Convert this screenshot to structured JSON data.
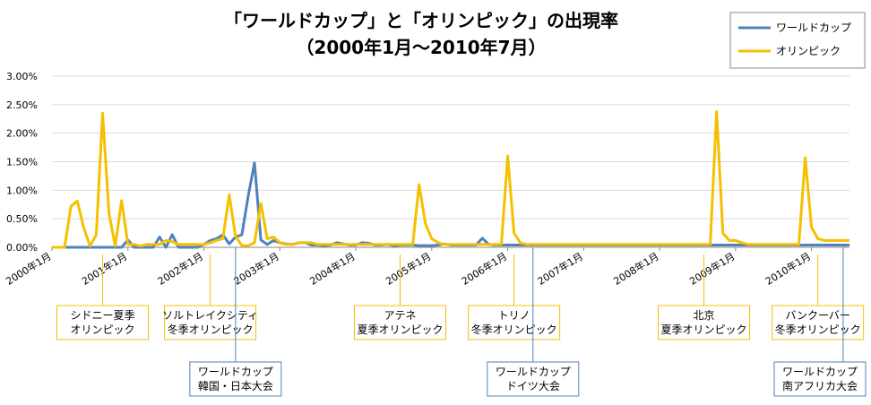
{
  "colors": {
    "worldcup": "#4F81BD",
    "olympic": "#F5C000",
    "grid": "#D9D9D9",
    "axis": "#888888"
  },
  "chart_data": {
    "type": "line",
    "title": [
      "「ワールドカップ」と「オリンピック」の出現率",
      "（2000年1月～2010年7月）"
    ],
    "ylim": [
      0,
      0.03
    ],
    "ytick_values": [
      0,
      0.005,
      0.01,
      0.015,
      0.02,
      0.025,
      0.03
    ],
    "ytick_labels": [
      "0.00%",
      "0.50%",
      "1.00%",
      "1.50%",
      "2.00%",
      "2.50%",
      "3.00%"
    ],
    "x_start": "2000年1月",
    "month_count": 127,
    "xtick_labels": [
      "2000年1月",
      "2001年1月",
      "2002年1月",
      "2003年1月",
      "2004年1月",
      "2005年1月",
      "2006年1月",
      "2007年1月",
      "2008年1月",
      "2009年1月",
      "2010年1月"
    ],
    "legend_position": "top-right",
    "series": [
      {
        "name": "ワールドカップ",
        "color": "#4F81BD",
        "values": [
          0,
          0,
          0,
          0,
          0,
          0,
          0,
          0,
          0,
          0,
          0,
          0,
          0.0013,
          0,
          0,
          0,
          0,
          0.0018,
          0,
          0.0022,
          0,
          0,
          0,
          0,
          0.0005,
          0.0012,
          0.0015,
          0.0022,
          0.0006,
          0.0018,
          0.0022,
          0.009,
          0.0148,
          0.0013,
          0.0005,
          0.0012,
          0.0008,
          0.0006,
          0.0005,
          0.0008,
          0.0008,
          0.0004,
          0.0004,
          0.0003,
          0.0004,
          0.0008,
          0.0006,
          0.0004,
          0.0004,
          0.0008,
          0.0007,
          0.0004,
          0.0004,
          0.0005,
          0.0003,
          0.0004,
          0.0004,
          0.0004,
          0.0003,
          0.0003,
          0.0003,
          0.0004,
          0.0006,
          0.0004,
          0.0004,
          0.0004,
          0.0004,
          0.0004,
          0.0016,
          0.0005,
          0.0004,
          0.0004,
          0.0004,
          0.0004,
          0.0004,
          0.0004,
          0.0004,
          0.0004,
          0.0004,
          0.0004,
          0.0004,
          0.0004,
          0.0004,
          0.0004,
          0.0004,
          0.0004,
          0.0004,
          0.0004,
          0.0004,
          0.0004,
          0.0004,
          0.0004,
          0.0004,
          0.0004,
          0.0004,
          0.0004,
          0.0004,
          0.0004,
          0.0004,
          0.0004,
          0.0004,
          0.0004,
          0.0004,
          0.0004,
          0.0004,
          0.0004,
          0.0004,
          0.0004,
          0.0004,
          0.0004,
          0.0004,
          0.0004,
          0.0004,
          0.0004,
          0.0004,
          0.0004,
          0.0004,
          0.0004,
          0.0004,
          0.0004,
          0.0004,
          0.0004,
          0.0004,
          0.0004,
          0.0004,
          0.0004,
          0.0004
        ]
      },
      {
        "name": "オリンピック",
        "color": "#F5C000",
        "values": [
          0,
          0,
          0,
          0.0072,
          0.0081,
          0.0035,
          0.0002,
          0.0022,
          0.0235,
          0.006,
          0.0002,
          0.0082,
          0.0005,
          0.0005,
          0.0002,
          0.0005,
          0.0005,
          0.0005,
          0.0012,
          0.001,
          0.0005,
          0.0005,
          0.0005,
          0.0005,
          0.0005,
          0.0008,
          0.0012,
          0.0015,
          0.0092,
          0.002,
          0.0003,
          0.0003,
          0.0008,
          0.0077,
          0.0015,
          0.0018,
          0.0008,
          0.0005,
          0.0005,
          0.0008,
          0.0008,
          0.0008,
          0.0005,
          0.0005,
          0.0005,
          0.0005,
          0.0005,
          0.0005,
          0.0005,
          0.0005,
          0.0005,
          0.0005,
          0.0005,
          0.0005,
          0.0005,
          0.0005,
          0.0005,
          0.0005,
          0.011,
          0.0042,
          0.0015,
          0.0008,
          0.0005,
          0.0005,
          0.0005,
          0.0005,
          0.0005,
          0.0005,
          0.0005,
          0.0005,
          0.0005,
          0.0005,
          0.016,
          0.0025,
          0.0008,
          0.0005,
          0.0005,
          0.0005,
          0.0005,
          0.0005,
          0.0005,
          0.0005,
          0.0005,
          0.0005,
          0.0005,
          0.0005,
          0.0005,
          0.0005,
          0.0005,
          0.0005,
          0.0005,
          0.0005,
          0.0005,
          0.0005,
          0.0005,
          0.0005,
          0.0005,
          0.0005,
          0.0005,
          0.0005,
          0.0005,
          0.0005,
          0.0005,
          0.0005,
          0.0005,
          0.0238,
          0.0025,
          0.0012,
          0.0012,
          0.0008,
          0.0005,
          0.0005,
          0.0005,
          0.0005,
          0.0005,
          0.0005,
          0.0005,
          0.0005,
          0.0005,
          0.0157,
          0.0035,
          0.0015,
          0.0012,
          0.0012,
          0.0012,
          0.0012,
          0.0012
        ]
      }
    ],
    "annotations": [
      {
        "lines": [
          "シドニー夏季",
          "オリンピック"
        ],
        "month": 8,
        "position": "above"
      },
      {
        "lines": [
          "ソルトレイクシティ",
          "冬季オリンピック"
        ],
        "month": 25,
        "position": "above"
      },
      {
        "lines": [
          "ワールドカップ",
          "韓国・日本大会"
        ],
        "month": 29,
        "position": "below"
      },
      {
        "lines": [
          "アテネ",
          "夏季オリンピック"
        ],
        "month": 55,
        "position": "above"
      },
      {
        "lines": [
          "トリノ",
          "冬季オリンピック"
        ],
        "month": 73,
        "position": "above"
      },
      {
        "lines": [
          "ワールドカップ",
          "ドイツ大会"
        ],
        "month": 76,
        "position": "below"
      },
      {
        "lines": [
          "北京",
          "夏季オリンピック"
        ],
        "month": 103,
        "position": "above"
      },
      {
        "lines": [
          "バンクーバー",
          "冬季オリンピック"
        ],
        "month": 121,
        "position": "above"
      },
      {
        "lines": [
          "ワールドカップ",
          "南アフリカ大会"
        ],
        "month": 125,
        "position": "below"
      }
    ]
  }
}
